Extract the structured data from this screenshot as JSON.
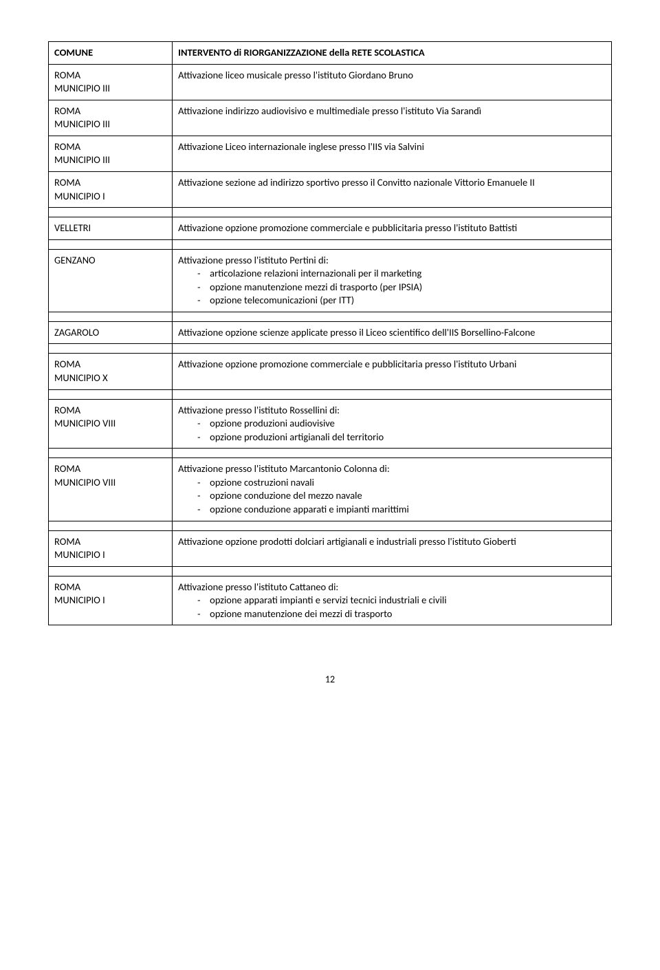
{
  "header": {
    "col1": "COMUNE",
    "col2": "INTERVENTO di RIORGANIZZAZIONE della RETE SCOLASTICA"
  },
  "rows": {
    "r1c1l1": "ROMA",
    "r1c1l2": "MUNICIPIO III",
    "r1c2": "Attivazione liceo musicale presso l'istituto Giordano Bruno",
    "r2c1l1": "ROMA",
    "r2c1l2": "MUNICIPIO III",
    "r2c2": "Attivazione indirizzo audiovisivo e multimediale presso l'istituto Via Sarandì",
    "r3c1l1": "ROMA",
    "r3c1l2": "MUNICIPIO III",
    "r3c2": "Attivazione Liceo internazionale inglese presso l'IIS via Salvini",
    "r4c1l1": "ROMA",
    "r4c1l2": "MUNICIPIO I",
    "r4c2": "Attivazione sezione ad indirizzo sportivo presso il Convitto nazionale Vittorio Emanuele II",
    "r5c1": "VELLETRI",
    "r5c2": "Attivazione opzione promozione commerciale e pubblicitaria presso l'istituto Battisti",
    "r6c1": "GENZANO",
    "r6intro": "Attivazione presso l'istituto Pertini di:",
    "r6b1": "articolazione relazioni internazionali per il marketing",
    "r6b2": "opzione manutenzione mezzi di trasporto (per IPSIA)",
    "r6b3": "opzione telecomunicazioni (per ITT)",
    "r7c1": "ZAGAROLO",
    "r7c2": "Attivazione opzione scienze applicate presso il Liceo scientifico dell'IIS Borsellino-Falcone",
    "r8c1l1": "ROMA",
    "r8c1l2": "MUNICIPIO X",
    "r8c2": "Attivazione opzione promozione commerciale e pubblicitaria presso l'istituto Urbani",
    "r9c1l1": "ROMA",
    "r9c1l2": "MUNICIPIO VIII",
    "r9intro": "Attivazione presso l'istituto Rossellini di:",
    "r9b1": "opzione produzioni audiovisive",
    "r9b2": "opzione produzioni artigianali del territorio",
    "r10c1l1": "ROMA",
    "r10c1l2": "MUNICIPIO VIII",
    "r10intro": "Attivazione presso l'istituto Marcantonio Colonna di:",
    "r10b1": "opzione costruzioni navali",
    "r10b2": "opzione conduzione del mezzo navale",
    "r10b3": "opzione conduzione apparati e impianti marittimi",
    "r11c1l1": "ROMA",
    "r11c1l2": "MUNICIPIO I",
    "r11c2": "Attivazione opzione prodotti dolciari artigianali e industriali presso l'istituto Gioberti",
    "r12c1l1": "ROMA",
    "r12c1l2": "MUNICIPIO I",
    "r12intro": "Attivazione presso l'istituto Cattaneo di:",
    "r12b1": "opzione apparati impianti e servizi tecnici industriali e civili",
    "r12b2": "opzione manutenzione dei mezzi di trasporto"
  },
  "pageNumber": "12"
}
